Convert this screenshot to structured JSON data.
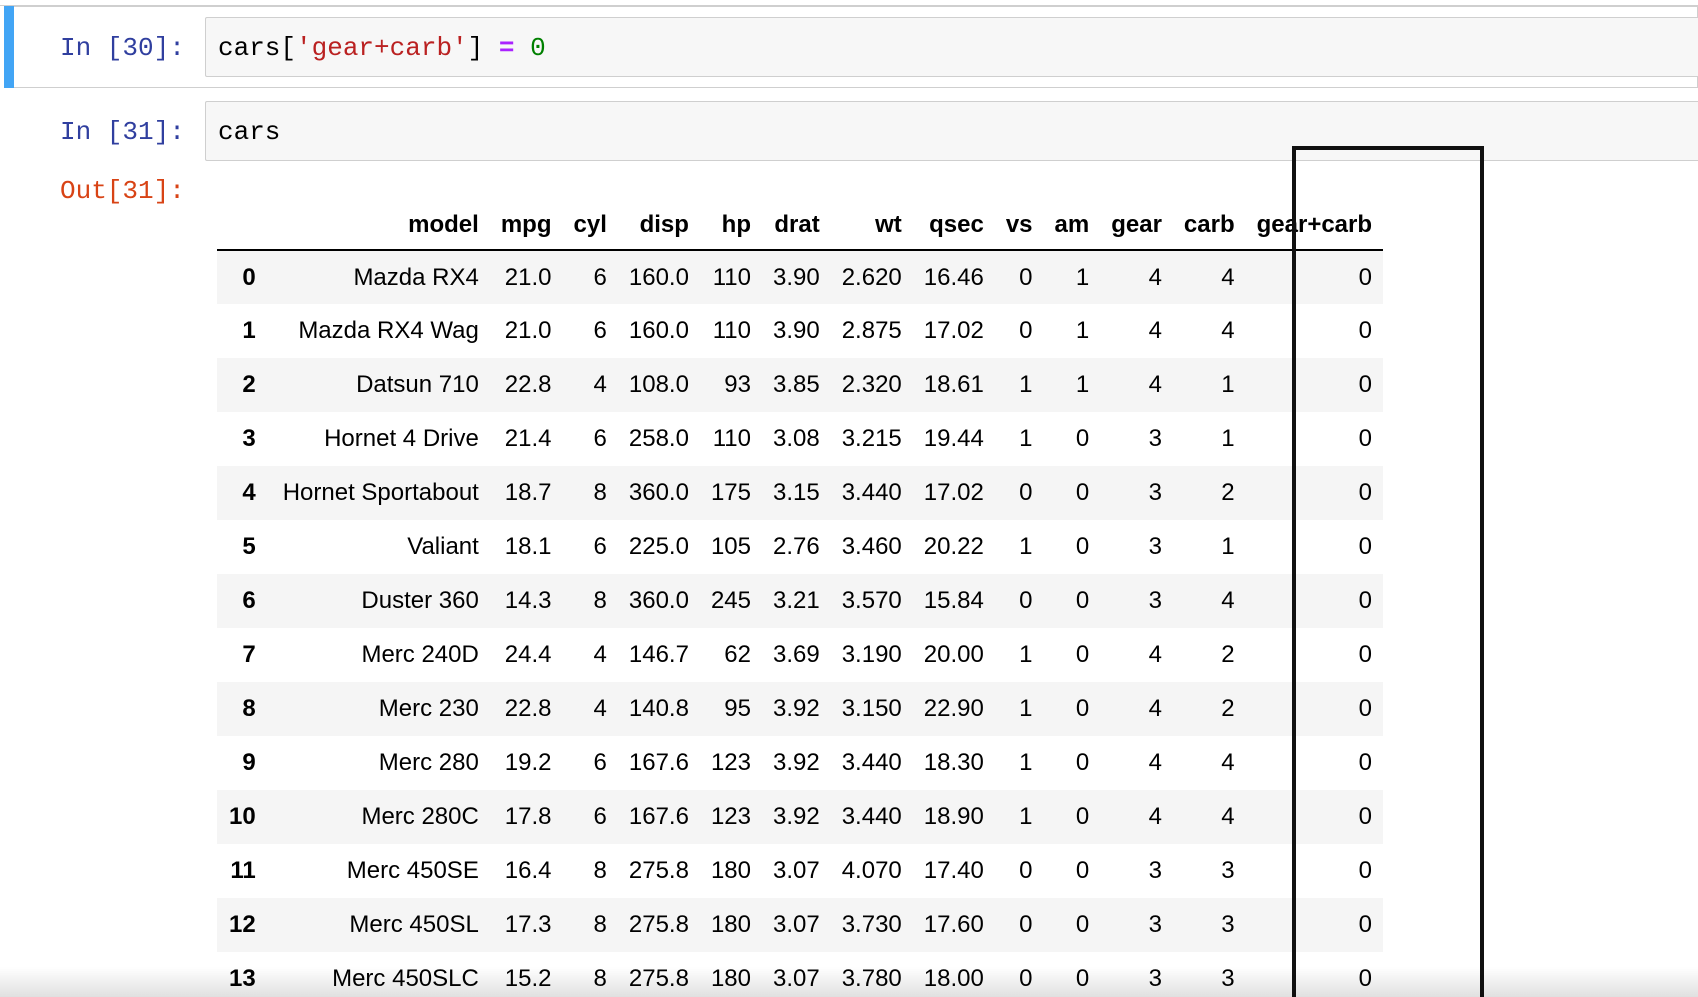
{
  "cells": [
    {
      "prompt": "In [30]:",
      "code_parts": {
        "var": "cars[",
        "string": "'gear+carb'",
        "close": "] ",
        "operator": "=",
        "space": " ",
        "number": "0"
      }
    },
    {
      "prompt": "In [31]:",
      "code": "cars",
      "out_prompt": "Out[31]:"
    }
  ],
  "dataframe": {
    "columns": [
      "model",
      "mpg",
      "cyl",
      "disp",
      "hp",
      "drat",
      "wt",
      "qsec",
      "vs",
      "am",
      "gear",
      "carb",
      "gear+carb"
    ],
    "rows": [
      {
        "index": "0",
        "cells": [
          "Mazda RX4",
          "21.0",
          "6",
          "160.0",
          "110",
          "3.90",
          "2.620",
          "16.46",
          "0",
          "1",
          "4",
          "4",
          "0"
        ]
      },
      {
        "index": "1",
        "cells": [
          "Mazda RX4 Wag",
          "21.0",
          "6",
          "160.0",
          "110",
          "3.90",
          "2.875",
          "17.02",
          "0",
          "1",
          "4",
          "4",
          "0"
        ]
      },
      {
        "index": "2",
        "cells": [
          "Datsun 710",
          "22.8",
          "4",
          "108.0",
          "93",
          "3.85",
          "2.320",
          "18.61",
          "1",
          "1",
          "4",
          "1",
          "0"
        ]
      },
      {
        "index": "3",
        "cells": [
          "Hornet 4 Drive",
          "21.4",
          "6",
          "258.0",
          "110",
          "3.08",
          "3.215",
          "19.44",
          "1",
          "0",
          "3",
          "1",
          "0"
        ]
      },
      {
        "index": "4",
        "cells": [
          "Hornet Sportabout",
          "18.7",
          "8",
          "360.0",
          "175",
          "3.15",
          "3.440",
          "17.02",
          "0",
          "0",
          "3",
          "2",
          "0"
        ]
      },
      {
        "index": "5",
        "cells": [
          "Valiant",
          "18.1",
          "6",
          "225.0",
          "105",
          "2.76",
          "3.460",
          "20.22",
          "1",
          "0",
          "3",
          "1",
          "0"
        ]
      },
      {
        "index": "6",
        "cells": [
          "Duster 360",
          "14.3",
          "8",
          "360.0",
          "245",
          "3.21",
          "3.570",
          "15.84",
          "0",
          "0",
          "3",
          "4",
          "0"
        ]
      },
      {
        "index": "7",
        "cells": [
          "Merc 240D",
          "24.4",
          "4",
          "146.7",
          "62",
          "3.69",
          "3.190",
          "20.00",
          "1",
          "0",
          "4",
          "2",
          "0"
        ]
      },
      {
        "index": "8",
        "cells": [
          "Merc 230",
          "22.8",
          "4",
          "140.8",
          "95",
          "3.92",
          "3.150",
          "22.90",
          "1",
          "0",
          "4",
          "2",
          "0"
        ]
      },
      {
        "index": "9",
        "cells": [
          "Merc 280",
          "19.2",
          "6",
          "167.6",
          "123",
          "3.92",
          "3.440",
          "18.30",
          "1",
          "0",
          "4",
          "4",
          "0"
        ]
      },
      {
        "index": "10",
        "cells": [
          "Merc 280C",
          "17.8",
          "6",
          "167.6",
          "123",
          "3.92",
          "3.440",
          "18.90",
          "1",
          "0",
          "4",
          "4",
          "0"
        ]
      },
      {
        "index": "11",
        "cells": [
          "Merc 450SE",
          "16.4",
          "8",
          "275.8",
          "180",
          "3.07",
          "4.070",
          "17.40",
          "0",
          "0",
          "3",
          "3",
          "0"
        ]
      },
      {
        "index": "12",
        "cells": [
          "Merc 450SL",
          "17.3",
          "8",
          "275.8",
          "180",
          "3.07",
          "3.730",
          "17.60",
          "0",
          "0",
          "3",
          "3",
          "0"
        ]
      },
      {
        "index": "13",
        "cells": [
          "Merc 450SLC",
          "15.2",
          "8",
          "275.8",
          "180",
          "3.07",
          "3.780",
          "18.00",
          "0",
          "0",
          "3",
          "3",
          "0"
        ]
      }
    ]
  },
  "colors": {
    "selected_cell_bar": "#42a5f5",
    "in_prompt": "#303f9f",
    "out_prompt": "#d84315",
    "string": "#ba2121",
    "operator": "#aa22ff",
    "number": "#008000"
  }
}
